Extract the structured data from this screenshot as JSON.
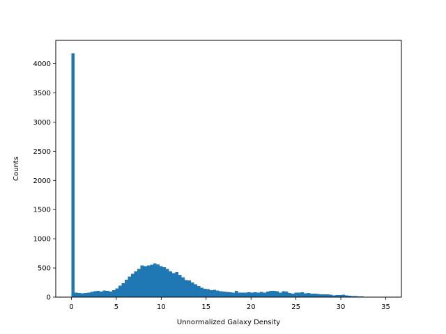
{
  "chart_data": {
    "type": "bar",
    "title": "",
    "xlabel": "Unnormalized Galaxy Density",
    "ylabel": "Counts",
    "xlim": [
      -1.75,
      36.75
    ],
    "ylim": [
      0,
      4400
    ],
    "xticks": [
      0,
      5,
      10,
      15,
      20,
      25,
      30,
      35
    ],
    "yticks": [
      0,
      500,
      1000,
      1500,
      2000,
      2500,
      3000,
      3500,
      4000
    ],
    "grid": false,
    "legend": "none",
    "bin_width": 0.35,
    "bin_start": 0,
    "bar_color": "#1f77b4",
    "counts": [
      4180,
      75,
      70,
      65,
      70,
      75,
      90,
      100,
      110,
      95,
      115,
      105,
      95,
      120,
      150,
      195,
      240,
      300,
      350,
      400,
      440,
      480,
      540,
      530,
      545,
      555,
      580,
      560,
      530,
      510,
      480,
      440,
      410,
      430,
      380,
      340,
      290,
      285,
      250,
      220,
      190,
      160,
      145,
      135,
      120,
      125,
      115,
      100,
      95,
      90,
      85,
      80,
      105,
      80,
      75,
      80,
      85,
      80,
      85,
      75,
      90,
      80,
      95,
      105,
      110,
      100,
      75,
      100,
      95,
      70,
      60,
      80,
      75,
      85,
      65,
      70,
      60,
      60,
      55,
      50,
      45,
      45,
      40,
      30,
      35,
      35,
      40,
      30,
      25,
      20,
      15,
      12,
      10,
      8,
      6,
      5,
      3,
      2,
      1,
      1,
      0,
      0,
      0,
      0,
      0,
      0,
      0,
      0,
      0,
      0,
      0,
      0,
      0,
      0,
      0,
      0,
      0,
      0,
      0,
      0
    ]
  }
}
